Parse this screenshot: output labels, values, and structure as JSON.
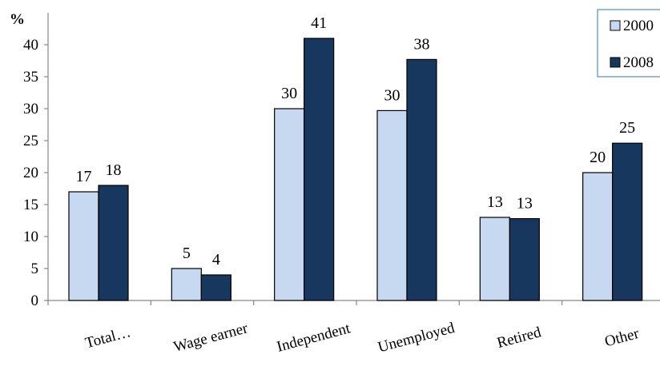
{
  "chart_data": {
    "type": "bar",
    "title": "",
    "unit_label": "%",
    "xlabel": "",
    "ylabel": "",
    "ylim": [
      0,
      45
    ],
    "yticks": [
      0,
      5,
      10,
      15,
      20,
      25,
      30,
      35,
      40
    ],
    "grid": false,
    "legend_position": "top-right",
    "categories": [
      "Total…",
      "Wage earner",
      "Independent",
      "Unemployed",
      "Retired",
      "Other"
    ],
    "series": [
      {
        "name": "2000",
        "color": "#c6d9f1",
        "values": [
          17,
          5,
          30,
          29.7,
          13,
          20
        ],
        "data_labels": [
          "17",
          "5",
          "30",
          "30",
          "13",
          "20"
        ]
      },
      {
        "name": "2008",
        "color": "#17375e",
        "values": [
          18,
          4,
          41,
          37.7,
          12.8,
          24.6
        ],
        "data_labels": [
          "18",
          "4",
          "41",
          "38",
          "13",
          "25"
        ]
      }
    ]
  }
}
